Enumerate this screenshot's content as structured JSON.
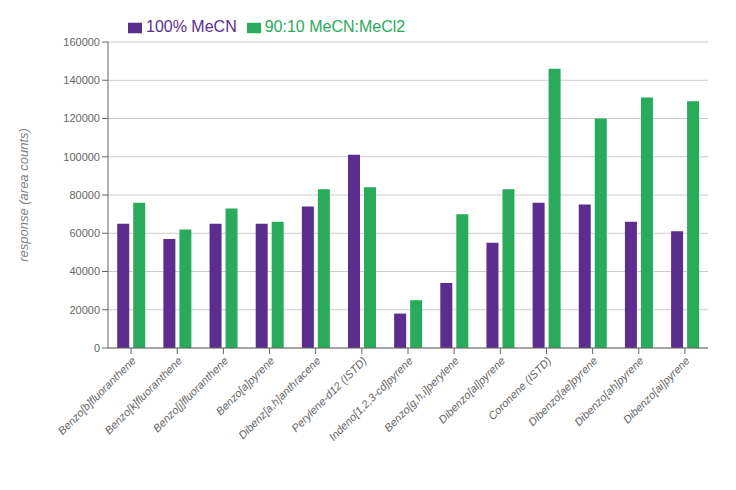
{
  "chart_data": {
    "type": "bar",
    "categories": [
      "Benzo[b]fluoranthene",
      "Benzo[k]fluoranthene",
      "Benzo[j]fluoranthene",
      "Benzo[a]pyrene",
      "Dibenz[a,h]anthracene",
      "Perylene-d12 (ISTD)",
      "Indeno[1,2,3-cd]pyrene",
      "Benzo[g,h,i]perylene",
      "Dibenzo[al]pyrene",
      "Coronene (ISTD)",
      "Dibenzo[ae]pyrene",
      "Dibenzo[ah]pyrene",
      "Dibenzo[ai]pyrene"
    ],
    "series": [
      {
        "name": "100% MeCN",
        "color": "#5b2d8e",
        "values": [
          65000,
          57000,
          65000,
          65000,
          74000,
          101000,
          18000,
          34000,
          55000,
          76000,
          75000,
          66000,
          61000
        ]
      },
      {
        "name": "90:10 MeCN:MeCl2",
        "color": "#2aab5b",
        "values": [
          76000,
          62000,
          73000,
          66000,
          83000,
          84000,
          25000,
          70000,
          83000,
          146000,
          120000,
          131000,
          129000
        ]
      }
    ],
    "ylabel": "response (area counts)",
    "ylim": [
      0,
      160000
    ],
    "yticks": [
      0,
      20000,
      40000,
      60000,
      80000,
      100000,
      120000,
      140000,
      160000
    ],
    "grid": true,
    "legend": "upper left"
  }
}
